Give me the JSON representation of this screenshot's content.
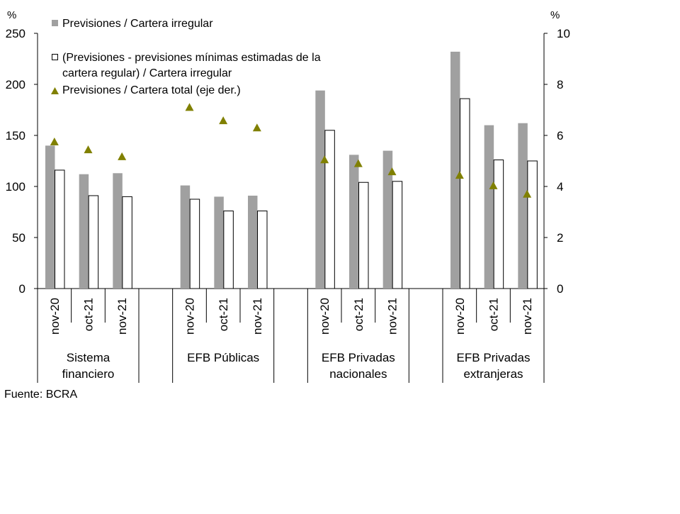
{
  "chart_data": {
    "type": "bar",
    "left_axis": {
      "unit": "%",
      "ylim": [
        0,
        250
      ],
      "ticks": [
        0,
        50,
        100,
        150,
        200,
        250
      ]
    },
    "right_axis": {
      "unit": "%",
      "ylim": [
        0,
        10
      ],
      "ticks": [
        0,
        2,
        4,
        6,
        8,
        10
      ]
    },
    "grid": false,
    "legend_placement": "top-left",
    "groups": [
      {
        "label": [
          "Sistema",
          "financiero"
        ],
        "categories": [
          "nov-20",
          "oct-21",
          "nov-21"
        ]
      },
      {
        "label": [
          "EFB Públicas"
        ],
        "categories": [
          "nov-20",
          "oct-21",
          "nov-21"
        ]
      },
      {
        "label": [
          "EFB Privadas",
          "nacionales"
        ],
        "categories": [
          "nov-20",
          "oct-21",
          "nov-21"
        ]
      },
      {
        "label": [
          "EFB Privadas",
          "extranjeras"
        ],
        "categories": [
          "nov-20",
          "oct-21",
          "nov-21"
        ]
      }
    ],
    "series": [
      {
        "name": "Previsiones / Cartera irregular",
        "kind": "bar",
        "axis": "left",
        "color": "#a0a0a0",
        "values": [
          140,
          112,
          113,
          101,
          90,
          91,
          194,
          131,
          135,
          232,
          160,
          162
        ]
      },
      {
        "name": "(Previsiones - previsiones mínimas estimadas de la cartera regular) / Cartera irregular",
        "name_lines": [
          "(Previsiones - previsiones mínimas estimadas de la",
          "cartera regular) / Cartera irregular"
        ],
        "kind": "bar",
        "axis": "left",
        "color": "#ffffff",
        "values": [
          116,
          91,
          90,
          87.5,
          76,
          76,
          155,
          104,
          105,
          186,
          126,
          125
        ]
      },
      {
        "name": "Previsiones / Cartera total (eje der.)",
        "kind": "marker-triangle",
        "axis": "right",
        "color": "#808000",
        "values": [
          5.75,
          5.44,
          5.17,
          7.1,
          6.58,
          6.3,
          5.05,
          4.9,
          4.58,
          4.44,
          4.03,
          3.7
        ]
      }
    ]
  },
  "source": "Fuente: BCRA"
}
